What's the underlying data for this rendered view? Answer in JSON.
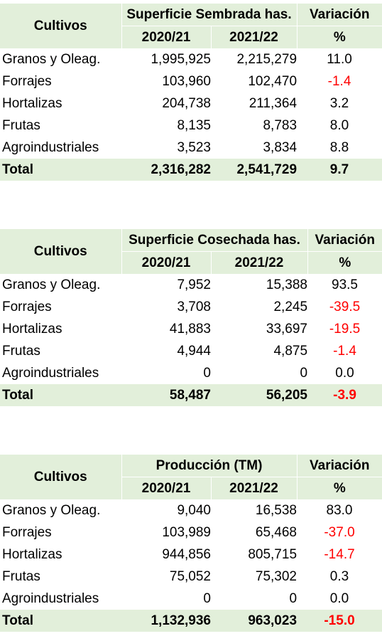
{
  "tables": [
    {
      "header": {
        "cultivos": "Cultivos",
        "group": "Superficie Sembrada has.",
        "year1": "2020/21",
        "year2": "2021/22",
        "var": "Variación",
        "pct": "%"
      },
      "rows": [
        {
          "name": "Granos y Oleag.",
          "v1": "1,995,925",
          "v2": "2,215,279",
          "var": "11.0"
        },
        {
          "name": "Forrajes",
          "v1": "103,960",
          "v2": "102,470",
          "var": "-1.4"
        },
        {
          "name": "Hortalizas",
          "v1": "204,738",
          "v2": "211,364",
          "var": "3.2"
        },
        {
          "name": "Frutas",
          "v1": "8,135",
          "v2": "8,783",
          "var": "8.0"
        },
        {
          "name": "Agroindustriales",
          "v1": "3,523",
          "v2": "3,834",
          "var": "8.8"
        }
      ],
      "total": {
        "name": "Total",
        "v1": "2,316,282",
        "v2": "2,541,729",
        "var": "9.7"
      }
    },
    {
      "header": {
        "cultivos": "Cultivos",
        "group": "Superficie Cosechada has.",
        "year1": "2020/21",
        "year2": "2021/22",
        "var": "Variación",
        "pct": "%"
      },
      "rows": [
        {
          "name": "Granos y Oleag.",
          "v1": "7,952",
          "v2": "15,388",
          "var": "93.5"
        },
        {
          "name": "Forrajes",
          "v1": "3,708",
          "v2": "2,245",
          "var": "-39.5"
        },
        {
          "name": "Hortalizas",
          "v1": "41,883",
          "v2": "33,697",
          "var": "-19.5"
        },
        {
          "name": "Frutas",
          "v1": "4,944",
          "v2": "4,875",
          "var": "-1.4"
        },
        {
          "name": "Agroindustriales",
          "v1": "0",
          "v2": "0",
          "var": "0.0"
        }
      ],
      "total": {
        "name": "Total",
        "v1": "58,487",
        "v2": "56,205",
        "var": "-3.9"
      }
    },
    {
      "header": {
        "cultivos": "Cultivos",
        "group": "Producción (TM)",
        "year1": "2020/21",
        "year2": "2021/22",
        "var": "Variación",
        "pct": "%"
      },
      "rows": [
        {
          "name": "Granos y Oleag.",
          "v1": "9,040",
          "v2": "16,538",
          "var": "83.0"
        },
        {
          "name": "Forrajes",
          "v1": "103,989",
          "v2": "65,468",
          "var": "-37.0"
        },
        {
          "name": "Hortalizas",
          "v1": "944,856",
          "v2": "805,715",
          "var": "-14.7"
        },
        {
          "name": "Frutas",
          "v1": "75,052",
          "v2": "75,302",
          "var": "0.3"
        },
        {
          "name": "Agroindustriales",
          "v1": "0",
          "v2": "0",
          "var": "0.0"
        }
      ],
      "total": {
        "name": "Total",
        "v1": "1,132,936",
        "v2": "963,023",
        "var": "-15.0"
      }
    }
  ],
  "colors": {
    "header_bg": "#e2efda",
    "negative": "#ff0000"
  }
}
